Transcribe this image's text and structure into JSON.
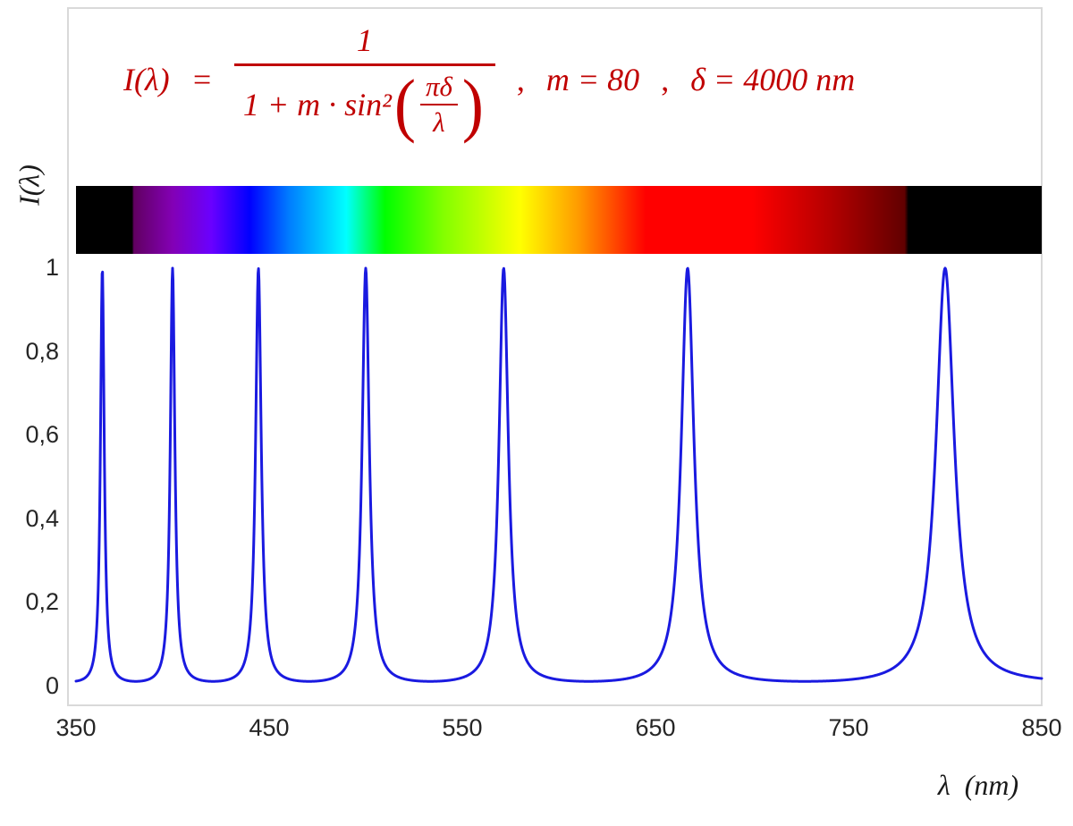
{
  "page": {
    "background": "#FFFFFF",
    "frame_border_color": "#D9D9D9"
  },
  "formula": {
    "lhs": "I(λ)",
    "equals": "=",
    "numerator": "1",
    "denominator_prefix": "1 + m · sin²",
    "paren_open": "(",
    "paren_close": ")",
    "inner_numerator": "πδ",
    "inner_denominator": "λ",
    "separator1": ",",
    "param_m": "m = 80",
    "separator2": ",",
    "param_delta": "δ = 4000 nm",
    "color": "#C00000"
  },
  "axes": {
    "y_title": "I(λ)",
    "x_title": "λ  (nm)",
    "y_tick_labels": [
      "1",
      "0,8",
      "0,6",
      "0,4",
      "0,2",
      "0"
    ],
    "x_tick_labels": [
      "350",
      "450",
      "550",
      "650",
      "750",
      "850"
    ]
  },
  "chart_data": {
    "type": "line",
    "title": "I(λ) = 1 / (1 + m·sin²(πδ/λ)) ,  m = 80 ,  δ = 4000 nm",
    "xlabel": "λ (nm)",
    "ylabel": "I(λ)",
    "xlim": [
      350,
      850
    ],
    "ylim": [
      0,
      1
    ],
    "x_ticks": [
      350,
      450,
      550,
      650,
      750,
      850
    ],
    "y_ticks": [
      0,
      0.2,
      0.4,
      0.6,
      0.8,
      1
    ],
    "grid": false,
    "legend": "none",
    "formula": "I(lambda) = 1 / (1 + m * sin^2(pi*delta/lambda))",
    "params": {
      "m": 80,
      "delta_nm": 4000
    },
    "peaks_nm": [
      363.64,
      400.0,
      444.44,
      500.0,
      571.43,
      666.67,
      800.0
    ],
    "n_peaks": 7,
    "peak_value": 1,
    "baseline_value": 0.0123,
    "curve": {
      "color": "#1A1AE0",
      "width": 3,
      "samples_per_nm": 4
    },
    "spectrum_bar": {
      "range_nm": [
        350,
        850
      ],
      "stops": [
        [
          350,
          "#000000"
        ],
        [
          379,
          "#000000"
        ],
        [
          380,
          "#610061"
        ],
        [
          400,
          "#8300B5"
        ],
        [
          420,
          "#6A00FF"
        ],
        [
          440,
          "#0000FF"
        ],
        [
          460,
          "#007BFF"
        ],
        [
          490,
          "#00FFFF"
        ],
        [
          510,
          "#00FF00"
        ],
        [
          540,
          "#82FF00"
        ],
        [
          580,
          "#FFFF00"
        ],
        [
          610,
          "#FF9B00"
        ],
        [
          645,
          "#FF0000"
        ],
        [
          700,
          "#FF0000"
        ],
        [
          740,
          "#B50000"
        ],
        [
          779,
          "#610000"
        ],
        [
          781,
          "#000000"
        ],
        [
          850,
          "#000000"
        ]
      ]
    }
  }
}
